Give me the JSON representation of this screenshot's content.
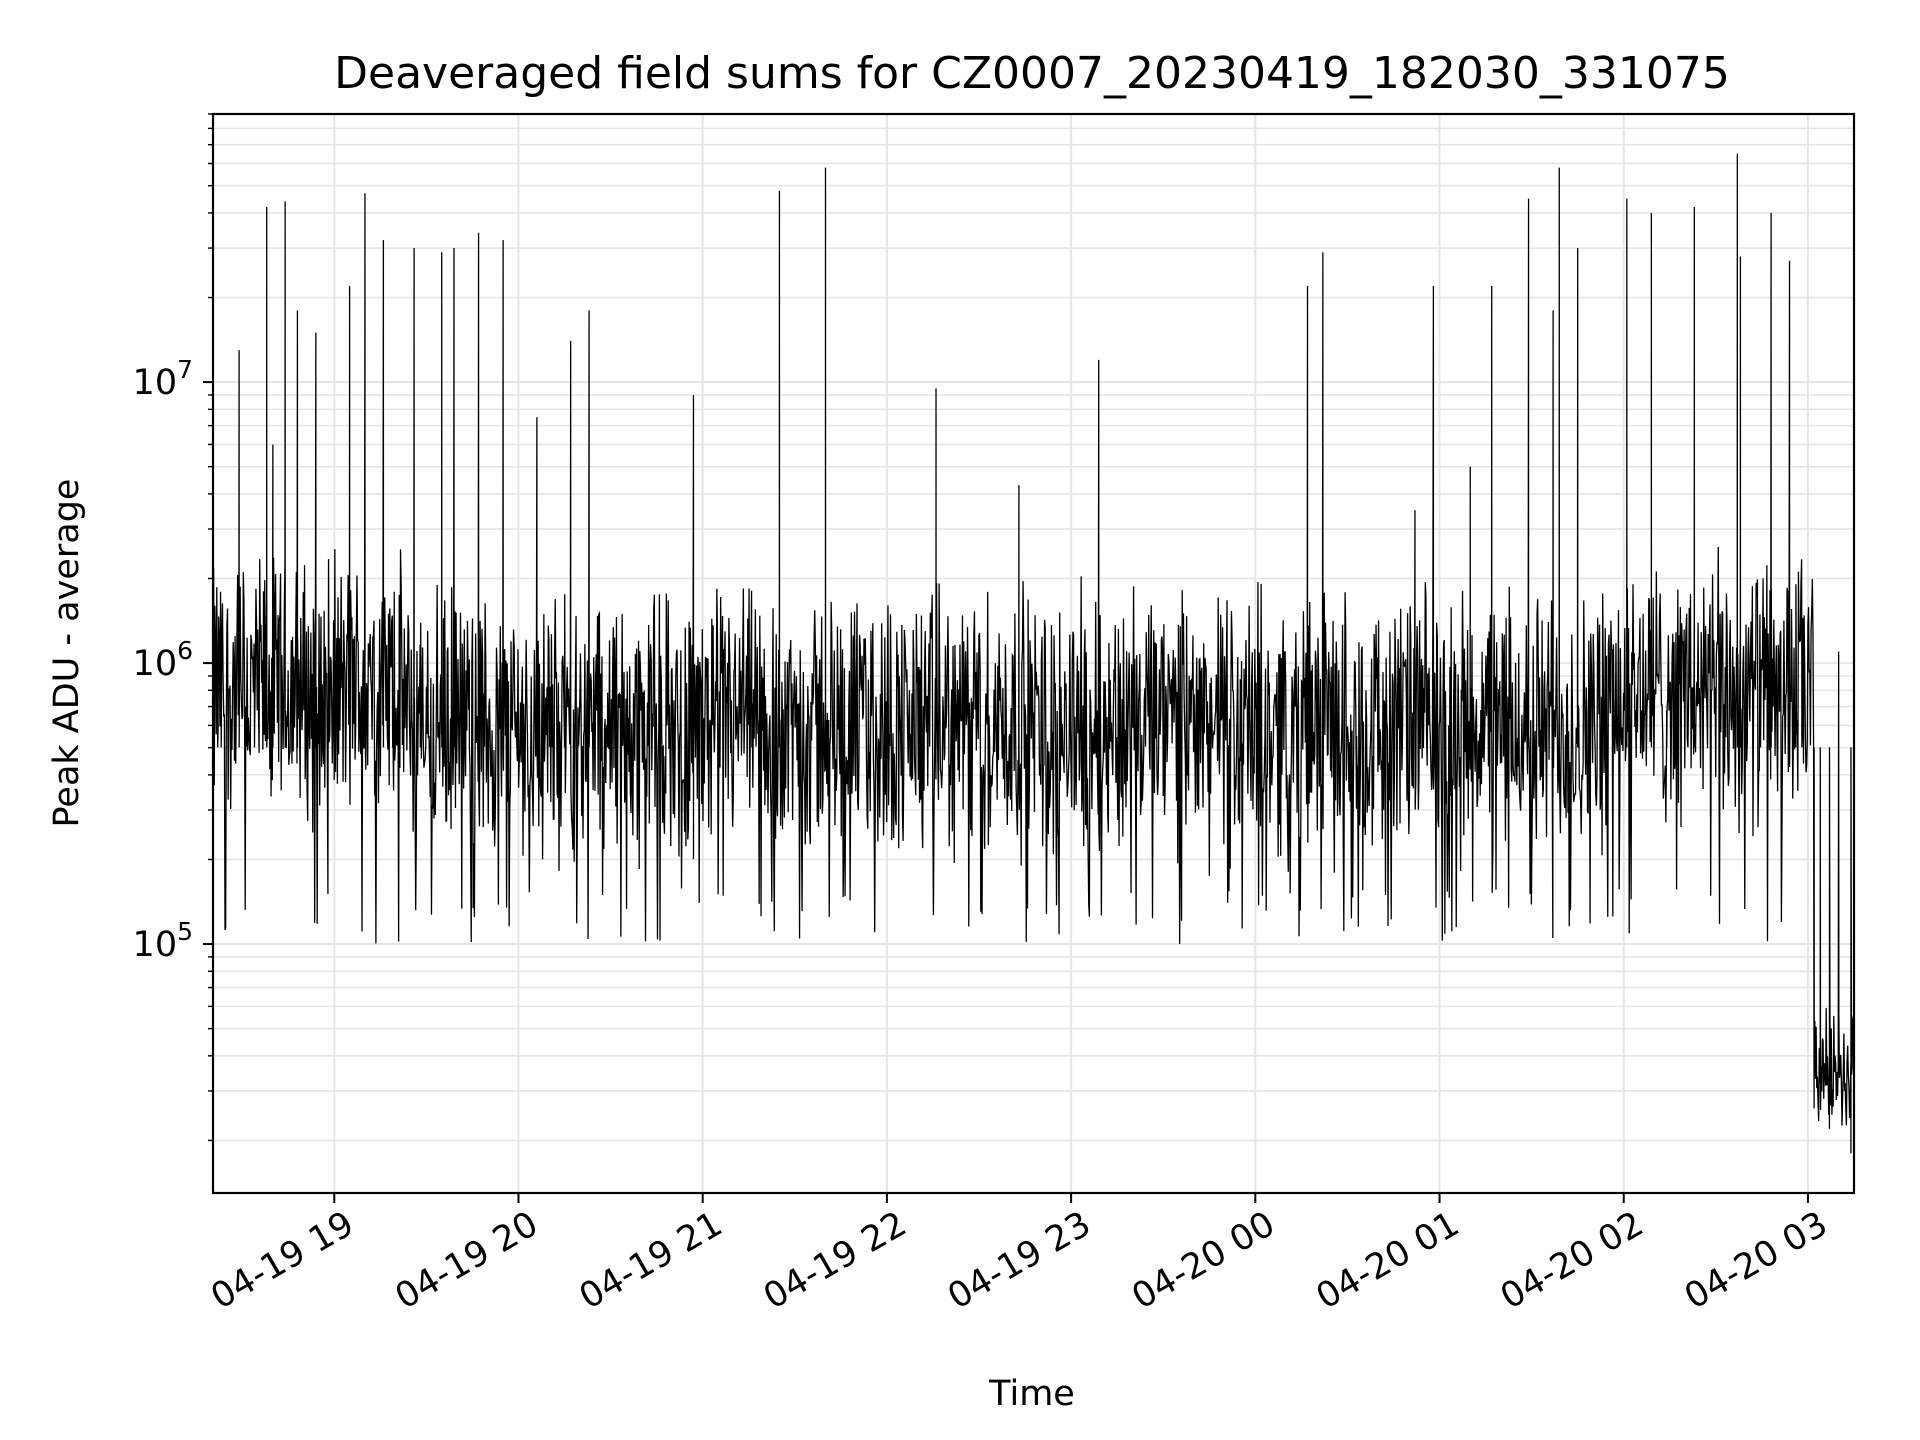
{
  "chart_data": {
    "type": "line",
    "title": "Deaveraged field sums for CZ0007_20230419_182030_331075",
    "xlabel": "Time",
    "ylabel": "Peak ADU - average",
    "yscale": "log",
    "grid": true,
    "line_color": "#000000",
    "grid_color": "#e5e5e5",
    "xlim": [
      "2023-04-19 18:20:30",
      "2023-04-20 03:15:00"
    ],
    "ylim": [
      13000,
      90000000
    ],
    "x_ticks": [
      {
        "value": "2023-04-19 19:00",
        "label": "04-19 19"
      },
      {
        "value": "2023-04-19 20:00",
        "label": "04-19 20"
      },
      {
        "value": "2023-04-19 21:00",
        "label": "04-19 21"
      },
      {
        "value": "2023-04-19 22:00",
        "label": "04-19 22"
      },
      {
        "value": "2023-04-19 23:00",
        "label": "04-19 23"
      },
      {
        "value": "2023-04-20 00:00",
        "label": "04-20 00"
      },
      {
        "value": "2023-04-20 01:00",
        "label": "04-20 01"
      },
      {
        "value": "2023-04-20 02:00",
        "label": "04-20 02"
      },
      {
        "value": "2023-04-20 03:00",
        "label": "04-20 03"
      }
    ],
    "y_ticks": [
      {
        "value": 100000,
        "base": "10",
        "exp": "5"
      },
      {
        "value": 1000000,
        "base": "10",
        "exp": "6"
      },
      {
        "value": 10000000,
        "base": "10",
        "exp": "7"
      }
    ],
    "series": [
      {
        "x": [
          "2023-04-19 18:22",
          "2023-04-19 18:29",
          "2023-04-19 18:34",
          "2023-04-19 18:38",
          "2023-04-19 18:40",
          "2023-04-19 18:44",
          "2023-04-19 18:48",
          "2023-04-19 18:52",
          "2023-04-19 18:54",
          "2023-04-19 18:57",
          "2023-04-19 18:58",
          "2023-04-19 19:05",
          "2023-04-19 19:10",
          "2023-04-19 19:16",
          "2023-04-19 19:19",
          "2023-04-19 19:26",
          "2023-04-19 19:28",
          "2023-04-19 19:35",
          "2023-04-19 19:39",
          "2023-04-19 19:44",
          "2023-04-19 19:47",
          "2023-04-19 19:55",
          "2023-04-19 20:00",
          "2023-04-19 20:06",
          "2023-04-19 20:11",
          "2023-04-19 20:15",
          "2023-04-19 20:17",
          "2023-04-19 20:23",
          "2023-04-19 20:29",
          "2023-04-19 20:47",
          "2023-04-19 20:57",
          "2023-04-19 21:16",
          "2023-04-19 21:25",
          "2023-04-19 21:26",
          "2023-04-19 21:40",
          "2023-04-19 22:16",
          "2023-04-19 22:43",
          "2023-04-19 23:09",
          "2023-04-20 00:17",
          "2023-04-20 00:22",
          "2023-04-20 00:33",
          "2023-04-20 00:52",
          "2023-04-20 00:58",
          "2023-04-20 01:03",
          "2023-04-20 01:10",
          "2023-04-20 01:17",
          "2023-04-20 01:29",
          "2023-04-20 01:37",
          "2023-04-20 01:39",
          "2023-04-20 01:45",
          "2023-04-20 01:48",
          "2023-04-20 02:01",
          "2023-04-20 02:09",
          "2023-04-20 02:14",
          "2023-04-20 02:23",
          "2023-04-20 02:31",
          "2023-04-20 02:37",
          "2023-04-20 02:38",
          "2023-04-20 02:48",
          "2023-04-20 02:54",
          "2023-04-20 02:56",
          "2023-04-20 02:58",
          "2023-04-20 03:02",
          "2023-04-20 03:04",
          "2023-04-20 03:07",
          "2023-04-20 03:10",
          "2023-04-20 03:14"
        ],
        "y": [
          550000,
          13000000,
          650000,
          42000000,
          6000000,
          44000000,
          18000000,
          550000,
          15000000,
          500000,
          600000,
          22000000,
          47000000,
          32000000,
          550000,
          30000000,
          600000,
          29000000,
          30000000,
          600000,
          34000000,
          32000000,
          550000,
          7500000,
          550000,
          520000,
          14000000,
          18000000,
          580000,
          500000,
          9000000,
          550000,
          48000000,
          580000,
          58000000,
          9500000,
          4300000,
          12000000,
          22000000,
          29000000,
          550000,
          3500000,
          22000000,
          600000,
          5000000,
          22000000,
          45000000,
          18000000,
          58000000,
          30000000,
          650000,
          45000000,
          40000000,
          680000,
          42000000,
          700000,
          65000000,
          28000000,
          40000000,
          27000000,
          700000,
          1000000,
          26000,
          32000,
          22000,
          1100000,
          18000
        ],
        "noise": "dense band ~2e5 to ~1e6 throughout, dropping to ~2e4-5e4 after 03:00"
      }
    ]
  }
}
